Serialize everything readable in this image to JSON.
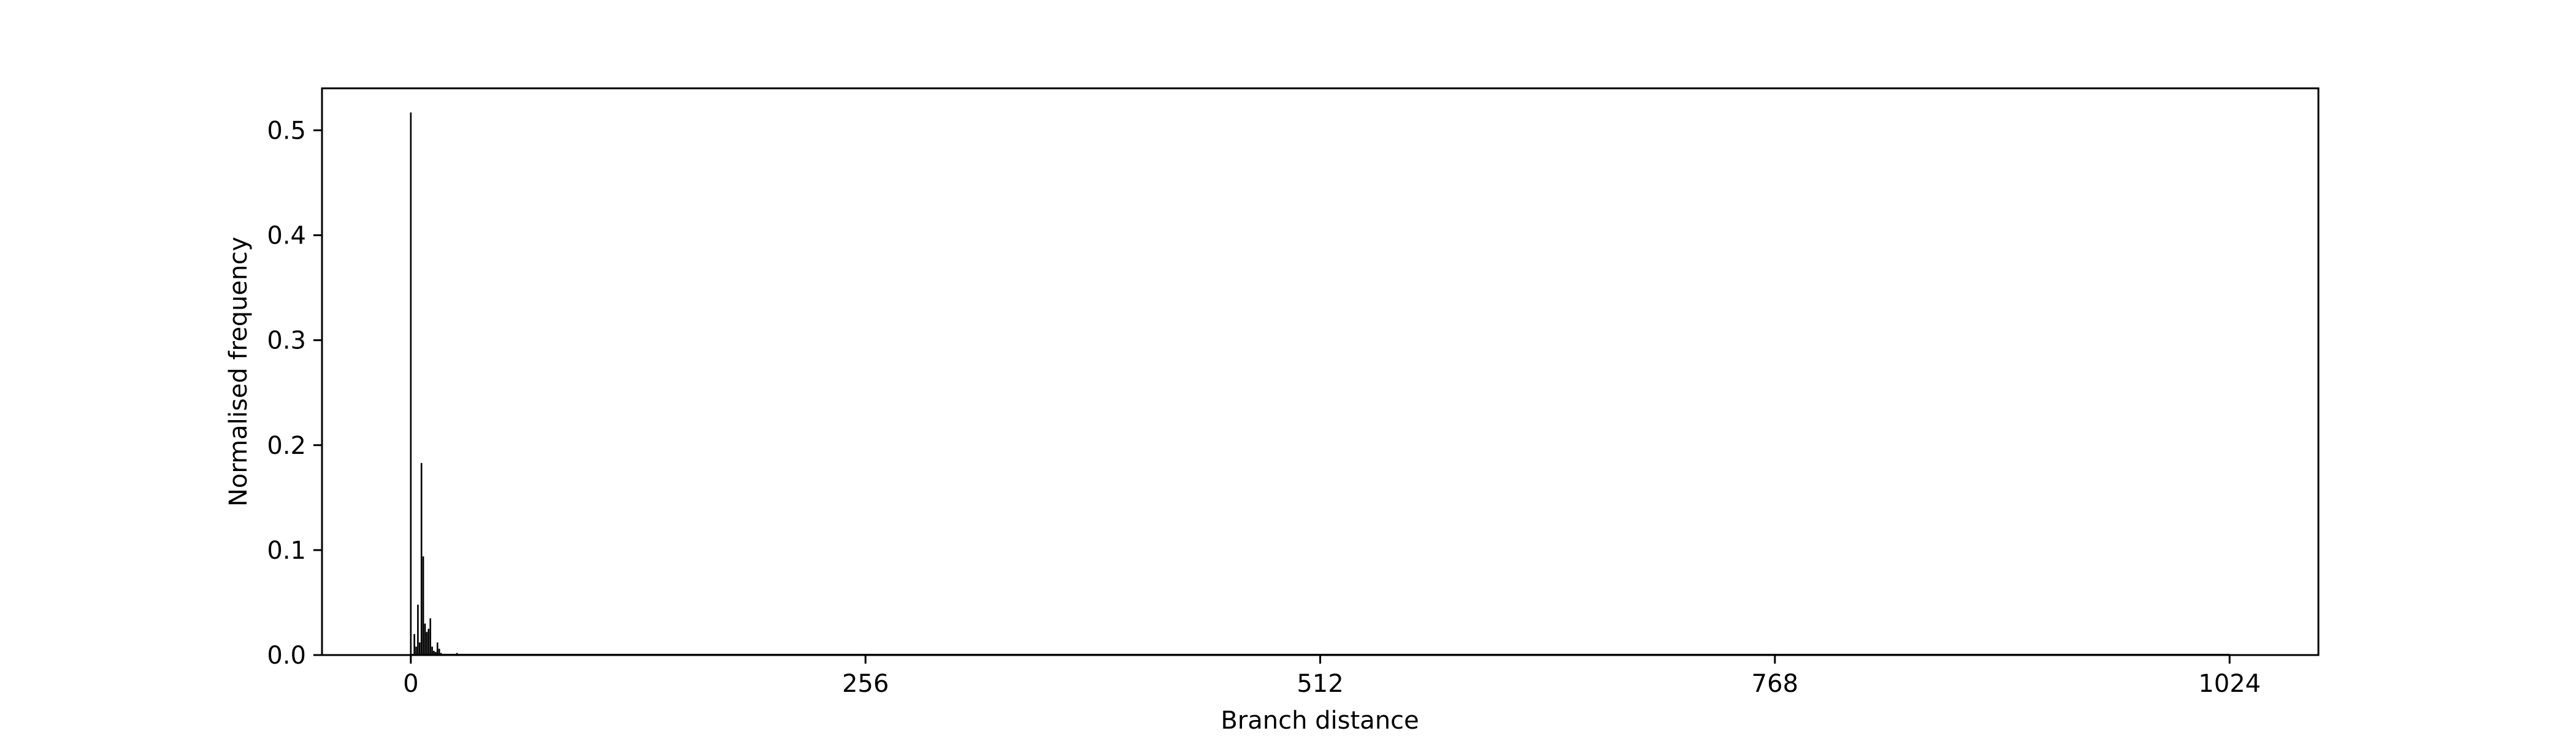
{
  "chart_data": {
    "type": "bar",
    "title": "",
    "xlabel": "Branch distance",
    "ylabel": "Normalised frequency",
    "xlim": [
      -50,
      1074
    ],
    "ylim": [
      0,
      0.54
    ],
    "xticks": [
      0,
      256,
      512,
      768,
      1024
    ],
    "xtick_labels": [
      "0",
      "256",
      "512",
      "768",
      "1024"
    ],
    "yticks": [
      0.0,
      0.1,
      0.2,
      0.3,
      0.4,
      0.5
    ],
    "ytick_labels": [
      "0.0",
      "0.1",
      "0.2",
      "0.3",
      "0.4",
      "0.5"
    ],
    "grid": false,
    "legend": "none",
    "bar_color": "#000000",
    "x": [
      0,
      1,
      2,
      3,
      4,
      5,
      6,
      7,
      8,
      9,
      10,
      11,
      12,
      13,
      14,
      15,
      16,
      17,
      18,
      20,
      26,
      27
    ],
    "values": [
      0.517,
      0.0,
      0.02,
      0.008,
      0.048,
      0.012,
      0.183,
      0.094,
      0.03,
      0.022,
      0.025,
      0.035,
      0.008,
      0.004,
      0.003,
      0.012,
      0.006,
      0.002,
      0.001,
      0.001,
      0.002,
      0.001
    ]
  }
}
